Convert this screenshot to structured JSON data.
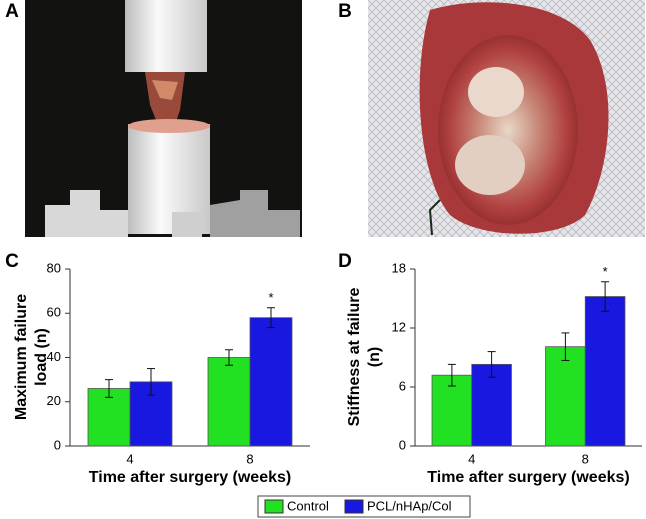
{
  "panel_labels": [
    "A",
    "B",
    "C",
    "D"
  ],
  "chart_data": [
    {
      "type": "bar",
      "xlabel": "Time after surgery (weeks)",
      "ylabel": [
        "Maximum failure",
        "load (n)"
      ],
      "categories": [
        "4",
        "8"
      ],
      "series": [
        {
          "name": "Control",
          "color": "#22e022",
          "values": [
            26,
            40
          ],
          "errors": [
            4,
            3.5
          ]
        },
        {
          "name": "PCL/nHAp/Col",
          "color": "#1818e0",
          "values": [
            29,
            58
          ],
          "errors": [
            6,
            4.5
          ]
        }
      ],
      "ylim": [
        0,
        80
      ],
      "yticks": [
        0,
        20,
        40,
        60,
        80
      ],
      "annotation": {
        "text": "*",
        "category": "8",
        "series": "PCL/nHAp/Col"
      }
    },
    {
      "type": "bar",
      "xlabel": "Time after surgery (weeks)",
      "ylabel": [
        "Stiffness at failure",
        "(n)"
      ],
      "categories": [
        "4",
        "8"
      ],
      "series": [
        {
          "name": "Control",
          "color": "#22e022",
          "values": [
            7.2,
            10.1
          ],
          "errors": [
            1.1,
            1.4
          ]
        },
        {
          "name": "PCL/nHAp/Col",
          "color": "#1818e0",
          "values": [
            8.3,
            15.2
          ],
          "errors": [
            1.3,
            1.5
          ]
        }
      ],
      "ylim": [
        0,
        18
      ],
      "yticks": [
        0,
        6,
        12,
        18
      ],
      "annotation": {
        "text": "*",
        "category": "8",
        "series": "PCL/nHAp/Col"
      }
    }
  ]
}
